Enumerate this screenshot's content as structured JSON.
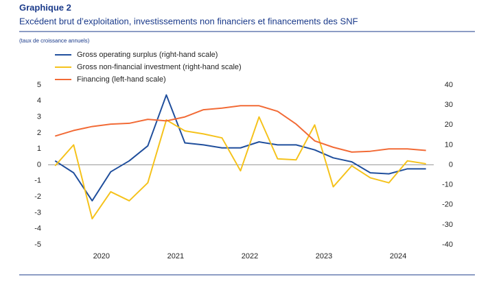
{
  "chart_data": {
    "type": "line",
    "title": "Graphique 2",
    "subtitle": "Excédent brut d’exploitation, investissements non financiers et financements des SNF",
    "note": "(taux de croissance annuels)",
    "x": [
      2019.875,
      2020.125,
      2020.375,
      2020.625,
      2020.875,
      2021.125,
      2021.375,
      2021.625,
      2021.875,
      2022.125,
      2022.375,
      2022.625,
      2022.875,
      2023.125,
      2023.375,
      2023.625,
      2023.875,
      2024.125,
      2024.375,
      2024.625,
      2024.875
    ],
    "xlim": [
      2019.78,
      2024.98
    ],
    "xticks": [
      {
        "value": 2020.5,
        "label": "2020"
      },
      {
        "value": 2021.5,
        "label": "2021"
      },
      {
        "value": 2022.5,
        "label": "2022"
      },
      {
        "value": 2023.5,
        "label": "2023"
      },
      {
        "value": 2024.5,
        "label": "2024"
      }
    ],
    "ylim": [
      -5,
      5
    ],
    "yticks": [
      -5,
      -4,
      -3,
      -2,
      -1,
      0,
      1,
      2,
      3,
      4,
      5
    ],
    "y2lim": [
      -40,
      40
    ],
    "y2ticks": [
      -40,
      -30,
      -20,
      -10,
      0,
      10,
      20,
      30,
      40
    ],
    "series": [
      {
        "name": "Gross operating surplus (right-hand scale)",
        "color": "#1f4e9c",
        "axis": "y2",
        "values": [
          2,
          -4,
          -18,
          -3.5,
          2,
          9.5,
          35,
          11,
          10,
          8.5,
          8.5,
          11.5,
          10,
          10,
          7.5,
          3.5,
          1.5,
          -4,
          -4.5,
          -2,
          -2
        ]
      },
      {
        "name": "Gross non-financial investment (right-hand scale)",
        "color": "#f5c21b",
        "axis": "y2",
        "values": [
          -0.5,
          10,
          -27,
          -13.5,
          -18,
          -9,
          22.5,
          17,
          15.5,
          13.5,
          -3,
          24,
          3,
          2.5,
          20,
          -11,
          -0.5,
          -6.5,
          -9,
          2,
          0.5
        ]
      },
      {
        "name": "Financing (left-hand scale)",
        "color": "#f26a35",
        "values": [
          1.8,
          2.15,
          2.4,
          2.55,
          2.6,
          2.85,
          2.75,
          3.0,
          3.45,
          3.55,
          3.7,
          3.7,
          3.35,
          2.55,
          1.5,
          1.1,
          0.8,
          0.85,
          1.0,
          1.0,
          0.9
        ]
      }
    ]
  }
}
